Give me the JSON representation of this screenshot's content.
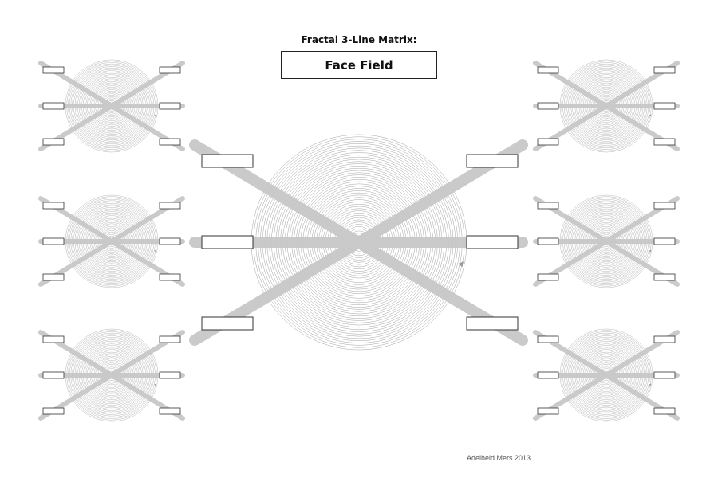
{
  "header": {
    "heading": "Fractal 3-Line Matrix:",
    "title": "Face Field"
  },
  "footer": {
    "credit": "Adelheid Mers 2013"
  },
  "colors": {
    "bar": "#c8c8c8",
    "ring": "#9a9a9a",
    "box_border": "#333333"
  },
  "diagram": {
    "central_unit": {
      "lines": 3,
      "label_boxes": 6,
      "label_values": [
        "",
        "",
        "",
        "",
        "",
        ""
      ]
    },
    "small_units": {
      "count": 6,
      "arrangement": "three on the left, three on the right",
      "lines_each": 3,
      "label_boxes_each": 6
    }
  }
}
